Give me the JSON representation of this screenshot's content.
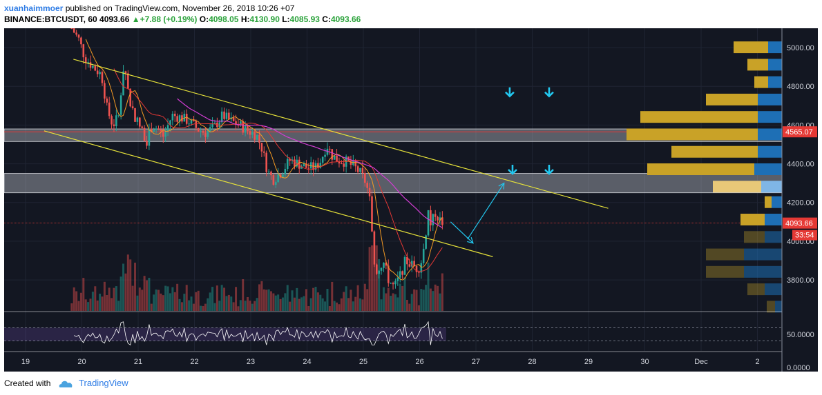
{
  "header": {
    "author": "xuanhaimmoer",
    "published_text": "published on TradingView.com, November 26, 2018 10:26 +07"
  },
  "quote": {
    "symbol": "BINANCE:BTCUSDT, 60",
    "last": "4093.66",
    "change_arrow": "▲",
    "change": "+7.88 (+0.19%)",
    "o_label": "O:",
    "o": "4098.05",
    "h_label": "H:",
    "h": "4130.90",
    "l_label": "L:",
    "l": "4085.93",
    "c_label": "C:",
    "c": "4093.66"
  },
  "footer": {
    "created_with": "Created with",
    "brand": "TradingView"
  },
  "colors": {
    "background": "#131722",
    "bull": "#26a69a",
    "bear": "#ef5350",
    "trendline": "#e6e23a",
    "ma_fast": "#f59a23",
    "ma_mid": "#e53935",
    "ma_slow": "#d43dd4",
    "zone": "#b2b5be",
    "arrow": "#22c8f0",
    "rsi": "#ffffff"
  },
  "chart_data": {
    "type": "candlestick",
    "price_axis": {
      "ticks": [
        "5000.00",
        "4800.00",
        "4600.00",
        "4400.00",
        "4200.00",
        "4000.00",
        "3800.00"
      ],
      "ylim": [
        3640,
        5100
      ]
    },
    "time_axis": {
      "ticks": [
        "19",
        "20",
        "21",
        "22",
        "23",
        "24",
        "25",
        "26",
        "27",
        "28",
        "29",
        "30",
        "Dec",
        "2"
      ]
    },
    "price_labels": {
      "resistance": "4565.07",
      "last_price": "4093.66",
      "countdown": "33:54"
    },
    "zones": [
      {
        "name": "upper-zone",
        "from": 4515,
        "to": 4580
      },
      {
        "name": "lower-zone",
        "from": 4250,
        "to": 4350
      }
    ],
    "price_path_days": [
      [
        19.82,
        5100
      ],
      [
        19.95,
        5040
      ],
      [
        20.05,
        4950
      ],
      [
        20.2,
        4900
      ],
      [
        20.35,
        4860
      ],
      [
        20.45,
        4680
      ],
      [
        20.55,
        4600
      ],
      [
        20.65,
        4640
      ],
      [
        20.75,
        4930
      ],
      [
        20.85,
        4720
      ],
      [
        20.95,
        4640
      ],
      [
        21.05,
        4580
      ],
      [
        21.15,
        4520
      ],
      [
        21.25,
        4600
      ],
      [
        21.35,
        4580
      ],
      [
        21.45,
        4540
      ],
      [
        21.6,
        4650
      ],
      [
        21.75,
        4640
      ],
      [
        21.9,
        4620
      ],
      [
        22.05,
        4580
      ],
      [
        22.2,
        4560
      ],
      [
        22.35,
        4590
      ],
      [
        22.5,
        4650
      ],
      [
        22.65,
        4620
      ],
      [
        22.8,
        4600
      ],
      [
        22.95,
        4570
      ],
      [
        23.1,
        4550
      ],
      [
        23.2,
        4480
      ],
      [
        23.3,
        4360
      ],
      [
        23.4,
        4320
      ],
      [
        23.55,
        4360
      ],
      [
        23.7,
        4420
      ],
      [
        23.85,
        4400
      ],
      [
        24.0,
        4380
      ],
      [
        24.15,
        4380
      ],
      [
        24.25,
        4420
      ],
      [
        24.35,
        4500
      ],
      [
        24.45,
        4440
      ],
      [
        24.55,
        4420
      ],
      [
        24.7,
        4410
      ],
      [
        24.85,
        4380
      ],
      [
        24.95,
        4350
      ],
      [
        25.05,
        4300
      ],
      [
        25.12,
        4200
      ],
      [
        25.18,
        3900
      ],
      [
        25.25,
        3840
      ],
      [
        25.35,
        3900
      ],
      [
        25.45,
        3800
      ],
      [
        25.55,
        3760
      ],
      [
        25.65,
        3820
      ],
      [
        25.75,
        3900
      ],
      [
        25.85,
        3880
      ],
      [
        25.95,
        3860
      ],
      [
        26.0,
        3870
      ],
      [
        26.05,
        3920
      ],
      [
        26.1,
        4020
      ],
      [
        26.15,
        4160
      ],
      [
        26.2,
        4080
      ],
      [
        26.28,
        4150
      ],
      [
        26.35,
        4110
      ],
      [
        26.42,
        4093
      ]
    ],
    "trendlines": [
      {
        "name": "upper-channel",
        "points": [
          [
            19.85,
            4940
          ],
          [
            29.35,
            4170
          ]
        ]
      },
      {
        "name": "lower-channel",
        "points": [
          [
            19.33,
            4570
          ],
          [
            27.3,
            3920
          ]
        ]
      }
    ],
    "projection_arrows": [
      {
        "from": [
          26.55,
          4100
        ],
        "to": [
          26.95,
          3990
        ]
      },
      {
        "from": [
          26.85,
          4010
        ],
        "to": [
          27.5,
          4300
        ]
      }
    ],
    "down_arrows": [
      {
        "day": 27.6,
        "price": 4770
      },
      {
        "day": 28.3,
        "price": 4770
      },
      {
        "day": 27.65,
        "price": 4370
      },
      {
        "day": 28.3,
        "price": 4370
      }
    ],
    "volume_profile": [
      {
        "price": 5000,
        "up": 20,
        "down": 50
      },
      {
        "price": 4910,
        "up": 20,
        "down": 30
      },
      {
        "price": 4820,
        "up": 20,
        "down": 20
      },
      {
        "price": 4730,
        "up": 35,
        "down": 75
      },
      {
        "price": 4640,
        "up": 35,
        "down": 170
      },
      {
        "price": 4550,
        "up": 35,
        "down": 190
      },
      {
        "price": 4460,
        "up": 35,
        "down": 125
      },
      {
        "price": 4370,
        "up": 40,
        "down": 155
      },
      {
        "price": 4280,
        "up": 30,
        "down": 70
      },
      {
        "price": 4200,
        "up": 15,
        "down": 10
      },
      {
        "price": 4110,
        "up": 25,
        "down": 35
      },
      {
        "price": 4020,
        "up": 25,
        "down": 30
      },
      {
        "price": 3930,
        "up": 55,
        "down": 55
      },
      {
        "price": 3840,
        "up": 55,
        "down": 55
      },
      {
        "price": 3750,
        "up": 25,
        "down": 25
      },
      {
        "price": 3660,
        "up": 10,
        "down": 12
      }
    ],
    "rsi": {
      "ticks": [
        "50.0000",
        "0.0000"
      ],
      "level_high": 70,
      "level_low": 30
    }
  }
}
